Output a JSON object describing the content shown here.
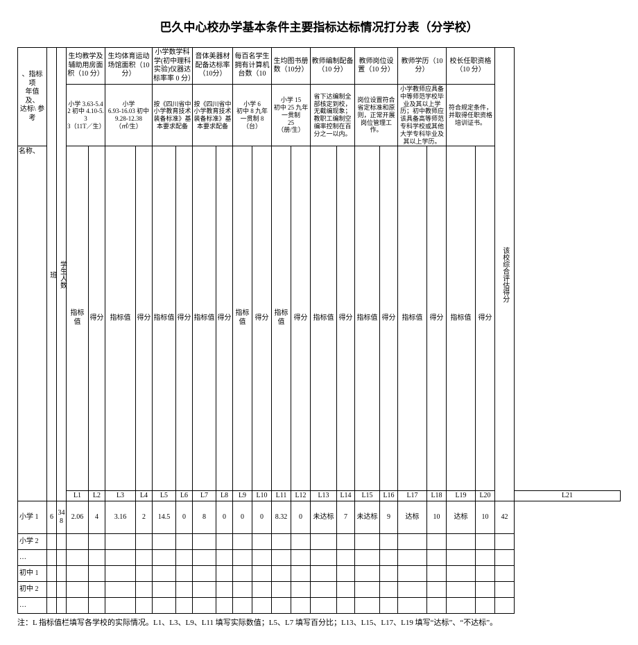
{
  "title": "巴久中心校办学基本条件主要指标达标情况打分表（分学校）",
  "row_label_header": "、指标项\n年值及、\n达标\\ 参\n考",
  "name_label": "名称、",
  "ban_label": "班",
  "student_label": "学生人数",
  "headers": [
    "生均教学及辅助用房面积（10 分）",
    "生均体育运动场馆面积（10 分）",
    "小学数学科学(初中理科实验)仪器达标率率 0 分）",
    "音体美器材配备达标率（10分）",
    "每百名学生拥有计算机台数（10",
    "生均图书册数（10分）",
    "教师编制配备（10 分）",
    "教师岗位设置（10 分）",
    "教师学历（10分）",
    "校长任职资格（10 分）"
  ],
  "comp_label": "该校综合评估得分",
  "standards": [
    "小学 3.63-5.4\n2 初中 4.10-5.3\n3（11T／生）",
    "小学\n6.93-16.03 初中\n9.28-12.38\n（㎡/生）",
    "按《四川省中小学教育技术装备标准》基本要求配备",
    "按《四川省中小学教育技术装备标准》基本要求配备",
    "小学 6\n初中 8 九年\n一贯制 8\n（台）",
    "小学 15\n初中 25 九年\n一贯制\n25\n（册/生）",
    "省下达编制全部核定到校，无截编现象；教职工编制空编率控制在百分之一以内。",
    "岗位设置符合省定标准和原则，正常开展岗位管理工作。",
    "小学教师应具备中等师范学校毕业及其以上学历；初中教师应该具备高等师范专科学校或其他大学专科毕业及其以上学历。",
    "符合规定条件，并取得任职资格培训证书。"
  ],
  "sub_labels": {
    "zb": "指标值",
    "df": "得分"
  },
  "L": [
    "L1",
    "L2",
    "L3",
    "L4",
    "L5",
    "L6",
    "L7",
    "L8",
    "L9",
    "L10",
    "L11",
    "L12",
    "L13",
    "L14",
    "L15",
    "L16",
    "L17",
    "L18",
    "L19",
    "L20",
    "L21"
  ],
  "rows": [
    {
      "name": "小学 1",
      "ban": "6",
      "stu": "348",
      "vals": [
        "2.06",
        "4",
        "3.16",
        "2",
        "14.5",
        "0",
        "8",
        "0",
        "0",
        "0",
        "8.32",
        "0",
        "未达标",
        "7",
        "未达标",
        "9",
        "达标",
        "10",
        "达标",
        "10",
        "42"
      ]
    },
    {
      "name": "小学 2",
      "ban": "",
      "stu": "",
      "vals": [
        "",
        "",
        "",
        "",
        "",
        "",
        "",
        "",
        "",
        "",
        "",
        "",
        "",
        "",
        "",
        "",
        "",
        "",
        "",
        "",
        ""
      ]
    },
    {
      "name": "…",
      "ban": "",
      "stu": "",
      "vals": [
        "",
        "",
        "",
        "",
        "",
        "",
        "",
        "",
        "",
        "",
        "",
        "",
        "",
        "",
        "",
        "",
        "",
        "",
        "",
        "",
        ""
      ]
    },
    {
      "name": "初中 1",
      "ban": "",
      "stu": "",
      "vals": [
        "",
        "",
        "",
        "",
        "",
        "",
        "",
        "",
        "",
        "",
        "",
        "",
        "",
        "",
        "",
        "",
        "",
        "",
        "",
        "",
        ""
      ]
    },
    {
      "name": "初中 2",
      "ban": "",
      "stu": "",
      "vals": [
        "",
        "",
        "",
        "",
        "",
        "",
        "",
        "",
        "",
        "",
        "",
        "",
        "",
        "",
        "",
        "",
        "",
        "",
        "",
        "",
        ""
      ]
    },
    {
      "name": "…",
      "ban": "",
      "stu": "",
      "vals": [
        "",
        "",
        "",
        "",
        "",
        "",
        "",
        "",
        "",
        "",
        "",
        "",
        "",
        "",
        "",
        "",
        "",
        "",
        "",
        "",
        ""
      ]
    }
  ],
  "footnote": "注：L 指标值栏填写各学校的实际情况。L1、L3、L9、L11 填写实际数值；L5、L7 填写百分比；L13、L15、L17、L19 填写“达标”、“不达标”。"
}
